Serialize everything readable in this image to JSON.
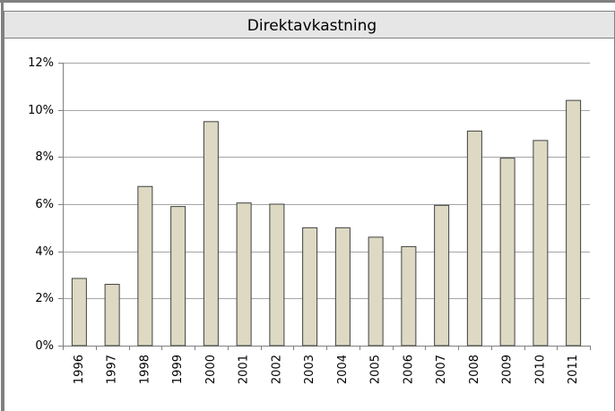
{
  "chart_data": {
    "type": "bar",
    "title": "Direktavkastning",
    "categories": [
      "1996",
      "1997",
      "1998",
      "1999",
      "2000",
      "2001",
      "2002",
      "2003",
      "2004",
      "2005",
      "2006",
      "2007",
      "2008",
      "2009",
      "2010",
      "2011"
    ],
    "values": [
      2.85,
      2.6,
      6.75,
      5.9,
      9.5,
      6.05,
      6.0,
      5.0,
      5.0,
      4.6,
      4.2,
      5.95,
      9.1,
      7.95,
      8.7,
      10.4
    ],
    "color": "#ddd9c3",
    "ylim": [
      0,
      12
    ],
    "yticks": [
      {
        "value": 0,
        "label": "0%"
      },
      {
        "value": 2,
        "label": "2%"
      },
      {
        "value": 4,
        "label": "4%"
      },
      {
        "value": 6,
        "label": "6%"
      },
      {
        "value": 8,
        "label": "8%"
      },
      {
        "value": 10,
        "label": "10%"
      },
      {
        "value": 12,
        "label": "12%"
      }
    ],
    "grid": true
  }
}
